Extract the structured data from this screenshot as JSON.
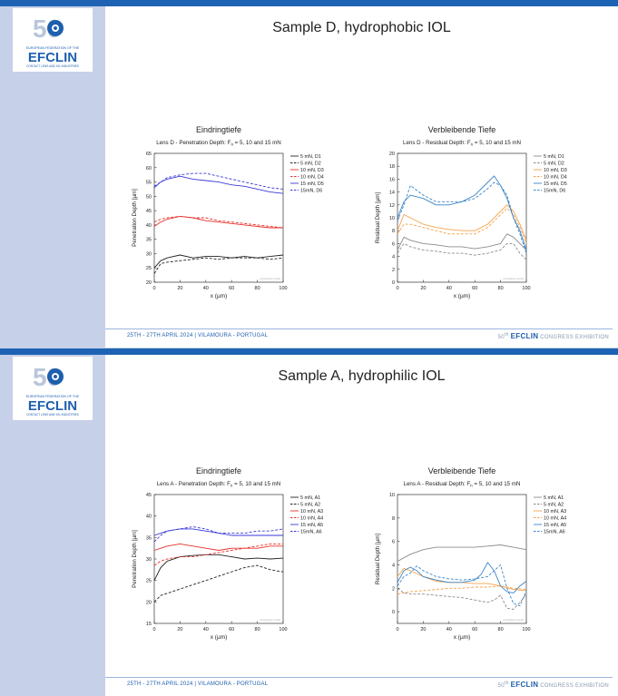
{
  "colors": {
    "sidebar": "#c6d0e8",
    "topbar": "#1e63b3",
    "brand": "#1e5fae",
    "black": "#222222",
    "red": "#e8312a",
    "blue": "#3a3ad8",
    "gray": "#8c8c8c",
    "orange": "#f5a24a",
    "teal": "#3a86c8"
  },
  "logo": {
    "number": "50",
    "tagline": "EUROPEAN FEDERATION OF THE",
    "wordmark": "EFCLIN",
    "subline": "CONTACT LENS AND IOL INDUSTRIES"
  },
  "slides": [
    {
      "title": "Sample D, hydrophobic IOL",
      "footer_left": "25TH - 27TH APRIL 2024 | VILAMOURA - PORTUGAL",
      "footer_right": {
        "ordinal": "50",
        "suffix": "th",
        "brand": "EFCLIN",
        "tail": "CONGRESS EXHIBITION"
      }
    },
    {
      "title": "Sample A, hydrophilic IOL",
      "footer_left": "25TH - 27TH APRIL 2024 | VILAMOURA - PORTUGAL",
      "footer_right": {
        "ordinal": "50",
        "suffix": "th",
        "brand": "EFCLIN",
        "tail": "CONGRESS EXHIBITION"
      }
    }
  ],
  "chart_data": [
    {
      "id": "d-pen",
      "type": "line",
      "header": "Eindringtiefe",
      "title": "Lens D - Penetration Depth: F",
      "title_sub": "n",
      "title_tail": " = 5, 10 and 15 mN",
      "xlabel": "x (µm)",
      "ylabel": "Penetration Depth [µm]",
      "xlim": [
        0,
        100
      ],
      "ylim": [
        20,
        65
      ],
      "xticks": [
        0,
        20,
        40,
        60,
        80,
        100
      ],
      "yticks": [
        20,
        25,
        30,
        35,
        40,
        45,
        50,
        55,
        60,
        65
      ],
      "watermark": "picoindenter results",
      "series": [
        {
          "name": "5 mN, D1",
          "color": "black",
          "dash": false,
          "x": [
            0,
            5,
            10,
            20,
            30,
            40,
            50,
            60,
            70,
            80,
            90,
            100
          ],
          "values": [
            25,
            27.5,
            28.5,
            29.5,
            28.5,
            29,
            29,
            28.5,
            29,
            28.5,
            29,
            29.5
          ]
        },
        {
          "name": "5 mN, D2",
          "color": "black",
          "dash": true,
          "x": [
            0,
            5,
            10,
            20,
            30,
            40,
            50,
            60,
            70,
            80,
            90,
            100
          ],
          "values": [
            23,
            26.5,
            27,
            27.5,
            28,
            28.5,
            28,
            28.5,
            28.5,
            28.5,
            28,
            28.5
          ]
        },
        {
          "name": "10 mN, D3",
          "color": "red",
          "dash": false,
          "x": [
            0,
            5,
            10,
            20,
            30,
            40,
            50,
            60,
            70,
            80,
            90,
            100
          ],
          "values": [
            39.5,
            41,
            42,
            43,
            42.5,
            41.5,
            41,
            40.5,
            40,
            39.5,
            39,
            39
          ]
        },
        {
          "name": "10 mN, D4",
          "color": "red",
          "dash": true,
          "x": [
            0,
            5,
            10,
            20,
            30,
            40,
            50,
            60,
            70,
            80,
            90,
            100
          ],
          "values": [
            41,
            42,
            42.5,
            43,
            42.5,
            42.5,
            41.5,
            41,
            40.5,
            40,
            39.5,
            39
          ]
        },
        {
          "name": "15 mN, D5",
          "color": "blue",
          "dash": false,
          "x": [
            0,
            5,
            10,
            20,
            30,
            40,
            50,
            60,
            70,
            80,
            90,
            100
          ],
          "values": [
            53,
            55,
            56,
            57,
            56,
            55.5,
            55,
            54,
            53.5,
            52.5,
            51.5,
            51
          ]
        },
        {
          "name": "15mN, D6",
          "color": "blue",
          "dash": true,
          "x": [
            0,
            5,
            10,
            20,
            30,
            40,
            50,
            60,
            70,
            80,
            90,
            100
          ],
          "values": [
            53.5,
            55,
            56.5,
            57.5,
            58,
            58,
            57,
            56,
            55,
            54,
            53,
            52.5
          ]
        }
      ]
    },
    {
      "id": "d-res",
      "type": "line",
      "header": "Verbleibende Tiefe",
      "title": "Lens D - Residual Depth: F",
      "title_sub": "n",
      "title_tail": " = 5, 10 and 15 mN",
      "xlabel": "x (µm)",
      "ylabel": "Residual Depth [µm]",
      "xlim": [
        0,
        100
      ],
      "ylim": [
        0,
        20
      ],
      "xticks": [
        0,
        20,
        40,
        60,
        80,
        100
      ],
      "yticks": [
        0,
        2,
        4,
        6,
        8,
        10,
        12,
        14,
        16,
        18,
        20
      ],
      "watermark": "picoindenter results",
      "series": [
        {
          "name": "5 mN, D1",
          "color": "gray",
          "dash": false,
          "x": [
            0,
            5,
            10,
            20,
            30,
            40,
            50,
            60,
            70,
            80,
            85,
            90,
            95,
            100
          ],
          "values": [
            5,
            7,
            6.5,
            6,
            5.8,
            5.5,
            5.5,
            5.2,
            5.5,
            6,
            7.5,
            7,
            6,
            5
          ]
        },
        {
          "name": "5 mN, D2",
          "color": "gray",
          "dash": true,
          "x": [
            0,
            5,
            10,
            20,
            30,
            40,
            50,
            60,
            70,
            80,
            85,
            90,
            95,
            100
          ],
          "values": [
            4.5,
            6,
            5.5,
            5,
            4.8,
            4.5,
            4.5,
            4.2,
            4.5,
            5,
            6,
            6,
            4.5,
            3.5
          ]
        },
        {
          "name": "10 mN, D3",
          "color": "orange",
          "dash": false,
          "x": [
            0,
            5,
            10,
            20,
            30,
            40,
            50,
            60,
            70,
            80,
            85,
            90,
            95,
            100
          ],
          "values": [
            8,
            10.5,
            10,
            9,
            8.5,
            8.2,
            8,
            8,
            9,
            11,
            12,
            11,
            9,
            6.5
          ]
        },
        {
          "name": "10 mN, D4",
          "color": "orange",
          "dash": true,
          "x": [
            0,
            5,
            10,
            20,
            30,
            40,
            50,
            60,
            70,
            80,
            85,
            90,
            95,
            100
          ],
          "values": [
            7.5,
            9,
            9,
            8.5,
            8,
            7.5,
            7.5,
            7.5,
            8.5,
            10.5,
            11.5,
            10.5,
            8.5,
            6
          ]
        },
        {
          "name": "15 mN, D5",
          "color": "teal",
          "dash": false,
          "x": [
            0,
            5,
            10,
            20,
            30,
            40,
            50,
            60,
            70,
            75,
            80,
            85,
            90,
            95,
            100
          ],
          "values": [
            10,
            12.5,
            13.5,
            13,
            12,
            12,
            12.5,
            13.5,
            15.5,
            16.5,
            15,
            13,
            10,
            8,
            5
          ]
        },
        {
          "name": "15mN, D6",
          "color": "teal",
          "dash": true,
          "x": [
            0,
            5,
            10,
            20,
            30,
            40,
            50,
            60,
            70,
            75,
            80,
            85,
            90,
            95,
            100
          ],
          "values": [
            9.5,
            12,
            15,
            13.5,
            12.5,
            12.5,
            12.5,
            13,
            14.5,
            15.5,
            15,
            13.5,
            10,
            7.5,
            4.5
          ]
        }
      ]
    },
    {
      "id": "a-pen",
      "type": "line",
      "header": "Eindringtiefe",
      "title": "Lens A - Penetration Depth: F",
      "title_sub": "n",
      "title_tail": " = 5, 10 and 15 mN",
      "xlabel": "x (µm)",
      "ylabel": "Penetration Depth [µm]",
      "xlim": [
        0,
        100
      ],
      "ylim": [
        15,
        45
      ],
      "xticks": [
        0,
        20,
        40,
        60,
        80,
        100
      ],
      "yticks": [
        15,
        20,
        25,
        30,
        35,
        40,
        45
      ],
      "watermark": "picoindenter results",
      "series": [
        {
          "name": "5 mN, A1",
          "color": "black",
          "dash": false,
          "x": [
            0,
            5,
            10,
            20,
            30,
            40,
            50,
            60,
            70,
            80,
            90,
            100
          ],
          "values": [
            25,
            28,
            29.5,
            30.5,
            30.8,
            31,
            31,
            30.5,
            30,
            30.2,
            30,
            30.2
          ]
        },
        {
          "name": "5 mN, A2",
          "color": "black",
          "dash": true,
          "x": [
            0,
            5,
            10,
            20,
            30,
            40,
            50,
            60,
            70,
            80,
            90,
            100
          ],
          "values": [
            20,
            21.5,
            22,
            23,
            24,
            25,
            26,
            27,
            28,
            28.5,
            27.5,
            27
          ]
        },
        {
          "name": "10 mN, A3",
          "color": "red",
          "dash": false,
          "x": [
            0,
            5,
            10,
            20,
            30,
            40,
            50,
            60,
            70,
            80,
            90,
            100
          ],
          "values": [
            32,
            32.5,
            33,
            33.5,
            33,
            32.5,
            32,
            32.5,
            32.5,
            32.5,
            33,
            33
          ]
        },
        {
          "name": "10 mN, A4",
          "color": "red",
          "dash": true,
          "x": [
            0,
            5,
            10,
            20,
            30,
            40,
            50,
            60,
            70,
            80,
            90,
            100
          ],
          "values": [
            28.5,
            29.5,
            30,
            30.5,
            30.5,
            31,
            31.5,
            32,
            32.5,
            33,
            33.5,
            33.5
          ]
        },
        {
          "name": "15 mN, A5",
          "color": "blue",
          "dash": false,
          "x": [
            0,
            5,
            10,
            20,
            30,
            40,
            50,
            60,
            70,
            80,
            90,
            100
          ],
          "values": [
            35.5,
            36,
            36.5,
            37,
            37,
            36.5,
            36,
            35.5,
            35.5,
            35.5,
            35.5,
            35.5
          ]
        },
        {
          "name": "15mN, A6",
          "color": "blue",
          "dash": true,
          "x": [
            0,
            5,
            10,
            20,
            30,
            40,
            50,
            60,
            70,
            80,
            90,
            100
          ],
          "values": [
            34,
            35.5,
            36.5,
            37,
            37.5,
            37,
            36,
            36,
            36,
            36.5,
            36.5,
            37
          ]
        }
      ]
    },
    {
      "id": "a-res",
      "type": "line",
      "header": "Verbleibende Tiefe",
      "title": "Lens A - Residual Depth: F",
      "title_sub": "n",
      "title_tail": " = 5, 10 and 15 mN",
      "xlabel": "x (µm)",
      "ylabel": "Residual Depth [µm]",
      "xlim": [
        0,
        100
      ],
      "ylim": [
        -1,
        10
      ],
      "xticks": [
        0,
        20,
        40,
        60,
        80,
        100
      ],
      "yticks": [
        0,
        2,
        4,
        6,
        8,
        10
      ],
      "watermark": "picoindenter results",
      "series": [
        {
          "name": "5 mN, A1",
          "color": "gray",
          "dash": false,
          "x": [
            0,
            5,
            10,
            20,
            30,
            40,
            50,
            60,
            70,
            80,
            90,
            100
          ],
          "values": [
            4.3,
            4.6,
            4.9,
            5.3,
            5.5,
            5.5,
            5.5,
            5.5,
            5.6,
            5.7,
            5.5,
            5.3
          ]
        },
        {
          "name": "5 mN, A2",
          "color": "gray",
          "dash": true,
          "x": [
            0,
            5,
            10,
            20,
            30,
            40,
            50,
            60,
            70,
            75,
            80,
            85,
            90,
            95,
            100
          ],
          "values": [
            2,
            1.6,
            1.5,
            1.5,
            1.4,
            1.3,
            1.2,
            1.0,
            0.8,
            1.0,
            1.4,
            0.3,
            0.2,
            0.8,
            1.5
          ]
        },
        {
          "name": "10 mN, A3",
          "color": "orange",
          "dash": false,
          "x": [
            0,
            5,
            10,
            20,
            30,
            40,
            50,
            60,
            70,
            80,
            90,
            100
          ],
          "values": [
            3,
            3.7,
            3.5,
            3,
            2.6,
            2.5,
            2.5,
            2.4,
            2.4,
            2.2,
            1.9,
            1.8
          ]
        },
        {
          "name": "10 mN, A4",
          "color": "orange",
          "dash": true,
          "x": [
            0,
            5,
            10,
            20,
            30,
            40,
            50,
            60,
            70,
            80,
            90,
            100
          ],
          "values": [
            1.5,
            1.6,
            1.7,
            1.8,
            1.9,
            2,
            2,
            2.1,
            2.1,
            2.2,
            2.0,
            1.9
          ]
        },
        {
          "name": "15 mN, A5",
          "color": "teal",
          "dash": false,
          "x": [
            0,
            5,
            10,
            15,
            20,
            30,
            40,
            50,
            60,
            65,
            70,
            75,
            80,
            85,
            90,
            95,
            100
          ],
          "values": [
            2.5,
            3.5,
            3.8,
            3.5,
            3.0,
            2.7,
            2.5,
            2.5,
            2.7,
            3.2,
            4.2,
            3.5,
            2.2,
            1.7,
            1.6,
            2.2,
            2.6
          ]
        },
        {
          "name": "15mN, A6",
          "color": "teal",
          "dash": true,
          "x": [
            0,
            5,
            10,
            15,
            20,
            30,
            40,
            50,
            60,
            70,
            75,
            80,
            85,
            90,
            95,
            100
          ],
          "values": [
            2.2,
            3.0,
            3.3,
            3.9,
            3.5,
            3.0,
            2.8,
            2.7,
            2.8,
            3.0,
            3.5,
            4.0,
            2.0,
            0.7,
            0.5,
            1.8
          ]
        }
      ]
    }
  ]
}
